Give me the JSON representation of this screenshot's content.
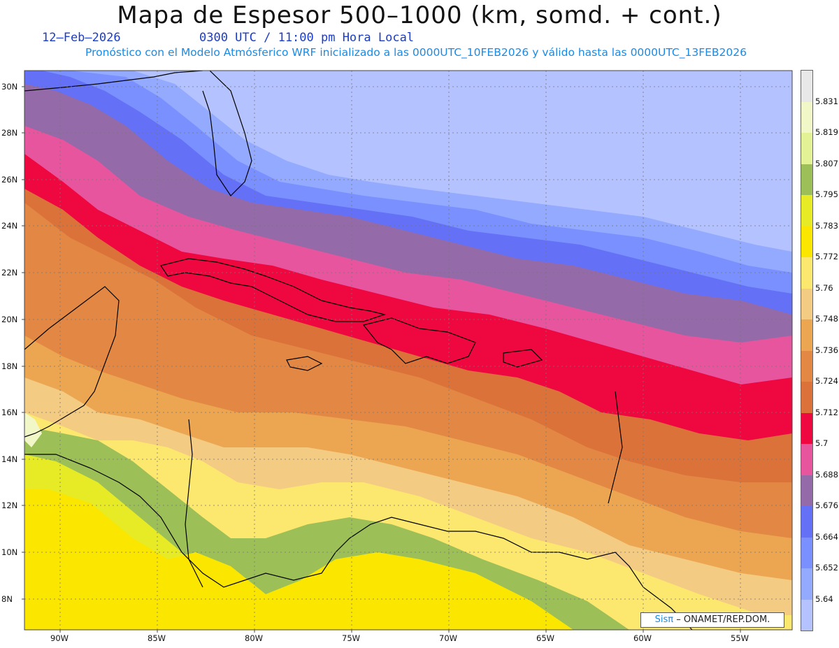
{
  "header": {
    "title": "Mapa de Espesor 500–1000 (km, somd. + cont.)",
    "date": "12–Feb–2026",
    "time": "0300 UTC / 11:00 pm Hora Local",
    "forecast": "Pronóstico con el Modelo Atmósferico WRF inicializado a las 0000UTC_10FEB2026 y válido hasta las  0000UTC_13FEB2026"
  },
  "credit": {
    "brand": "Sisπ",
    "text": "– ONAMET/REP.DOM."
  },
  "colorbar": {
    "colors": [
      "#b4c3ff",
      "#93aaff",
      "#7a90ff",
      "#6470f6",
      "#946aa8",
      "#e7559e",
      "#ef0740",
      "#db723a",
      "#e38844",
      "#eca651",
      "#f3cb82",
      "#fde86f",
      "#fbe600",
      "#e6eb26",
      "#9cbf58",
      "#e4f296",
      "#f2f7c8",
      "#e8e8e8"
    ],
    "labels": [
      "5.64",
      "5.652",
      "5.664",
      "5.676",
      "5.688",
      "5.7",
      "5.712",
      "5.724",
      "5.736",
      "5.748",
      "5.76",
      "5.772",
      "5.783",
      "5.795",
      "5.807",
      "5.819",
      "5.831"
    ]
  },
  "axes": {
    "lat_labels": [
      "30N",
      "28N",
      "26N",
      "24N",
      "22N",
      "20N",
      "18N",
      "16N",
      "14N",
      "12N",
      "10N",
      "8N"
    ],
    "lon_labels": [
      "90W",
      "85W",
      "80W",
      "75W",
      "70W",
      "65W",
      "60W",
      "55W"
    ],
    "lat_range": [
      6.9,
      30.9
    ],
    "lon_range": [
      -92,
      -52.6
    ]
  },
  "map_data": {
    "type": "filled-contour",
    "variable": "500-1000 hPa thickness",
    "units": "km",
    "contour_levels": [
      5.64,
      5.652,
      5.664,
      5.676,
      5.688,
      5.7,
      5.712,
      5.724,
      5.736,
      5.748,
      5.76,
      5.772,
      5.783,
      5.795,
      5.807,
      5.819,
      5.831
    ]
  }
}
